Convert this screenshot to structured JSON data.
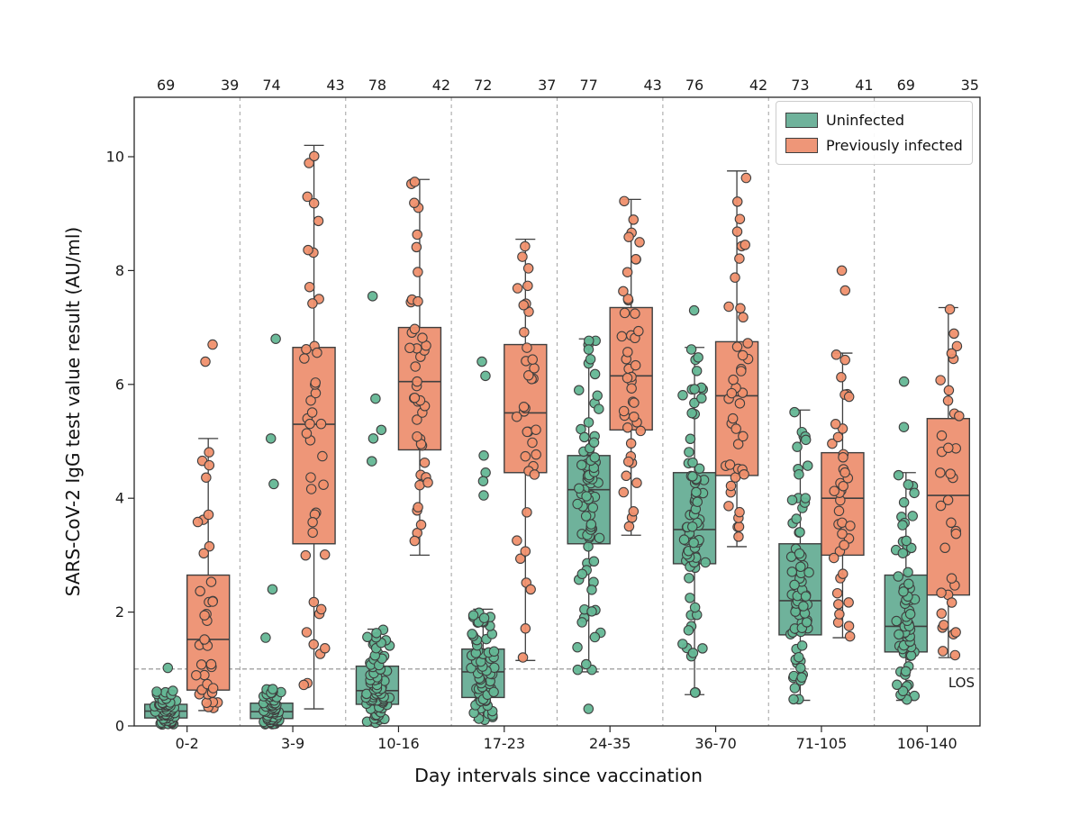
{
  "figure": {
    "ylabel": "SARS-CoV-2 IgG test value result (AU/ml)",
    "xlabel": "Day intervals since vaccination",
    "colors": {
      "frame": "#262626",
      "text": "#1a1a1a",
      "separator": "#a9a9a9",
      "reference_line": "#8c8c8c",
      "box_edge": "#3f3f3f"
    }
  },
  "chart_data": {
    "type": "box+jittered-strip",
    "title": "",
    "xlabel": "Day intervals since vaccination",
    "ylabel": "SARS-CoV-2 IgG test value result (AU/ml)",
    "categories": [
      "0-2",
      "3-9",
      "10-16",
      "17-23",
      "24-35",
      "36-70",
      "71-105",
      "106-140"
    ],
    "y_axis": {
      "ticks": [
        0,
        2,
        4,
        6,
        8,
        10
      ],
      "range": [
        0,
        11.04
      ],
      "grid": false
    },
    "reference_line": {
      "y": 1.0,
      "label": "LOS",
      "style": "dashed"
    },
    "top_axis_note": "per-group sample sizes printed above plot",
    "legend_position": "upper right",
    "series": [
      {
        "name": "Uninfected",
        "box_color": "#6fb29b",
        "point_color": "#64b795",
        "counts": [
          69,
          74,
          78,
          72,
          77,
          76,
          73,
          69
        ],
        "groups": [
          {
            "category": "0-2",
            "n": 69,
            "whisker_low": 0.02,
            "q1": 0.14,
            "median": 0.26,
            "q3": 0.38,
            "whisker_high": 0.62,
            "outliers": [
              1.02
            ]
          },
          {
            "category": "3-9",
            "n": 74,
            "whisker_low": 0.02,
            "q1": 0.13,
            "median": 0.25,
            "q3": 0.4,
            "whisker_high": 0.65,
            "outliers": [
              6.8,
              5.05,
              4.25,
              2.4,
              1.55
            ]
          },
          {
            "category": "10-16",
            "n": 78,
            "whisker_low": 0.05,
            "q1": 0.38,
            "median": 0.62,
            "q3": 1.05,
            "whisker_high": 1.7,
            "outliers": [
              7.55,
              5.75,
              5.2,
              5.05,
              4.65
            ]
          },
          {
            "category": "17-23",
            "n": 72,
            "whisker_low": 0.1,
            "q1": 0.5,
            "median": 0.95,
            "q3": 1.35,
            "whisker_high": 2.05,
            "outliers": [
              6.4,
              6.15,
              4.75,
              4.45,
              4.3,
              4.05
            ]
          },
          {
            "category": "24-35",
            "n": 77,
            "whisker_low": 0.95,
            "q1": 3.2,
            "median": 4.15,
            "q3": 4.75,
            "whisker_high": 6.8,
            "outliers": [
              0.3
            ]
          },
          {
            "category": "36-70",
            "n": 76,
            "whisker_low": 0.55,
            "q1": 2.85,
            "median": 3.45,
            "q3": 4.45,
            "whisker_high": 6.65,
            "outliers": [
              7.3
            ]
          },
          {
            "category": "71-105",
            "n": 73,
            "whisker_low": 0.45,
            "q1": 1.6,
            "median": 2.2,
            "q3": 3.2,
            "whisker_high": 5.55,
            "outliers": []
          },
          {
            "category": "106-140",
            "n": 69,
            "whisker_low": 0.45,
            "q1": 1.3,
            "median": 1.75,
            "q3": 2.65,
            "whisker_high": 4.45,
            "outliers": [
              6.05,
              5.25
            ]
          }
        ]
      },
      {
        "name": "Previously infected",
        "box_color": "#ee9678",
        "point_color": "#f0906d",
        "counts": [
          39,
          43,
          42,
          37,
          43,
          42,
          41,
          35
        ],
        "groups": [
          {
            "category": "0-2",
            "n": 39,
            "whisker_low": 0.27,
            "q1": 0.63,
            "median": 1.52,
            "q3": 2.65,
            "whisker_high": 5.05,
            "outliers": [
              6.7,
              6.4
            ]
          },
          {
            "category": "3-9",
            "n": 43,
            "whisker_low": 0.3,
            "q1": 3.2,
            "median": 5.3,
            "q3": 6.65,
            "whisker_high": 10.2,
            "outliers": []
          },
          {
            "category": "10-16",
            "n": 42,
            "whisker_low": 3.0,
            "q1": 4.85,
            "median": 6.05,
            "q3": 7.0,
            "whisker_high": 9.6,
            "outliers": []
          },
          {
            "category": "17-23",
            "n": 37,
            "whisker_low": 1.15,
            "q1": 4.45,
            "median": 5.5,
            "q3": 6.7,
            "whisker_high": 8.55,
            "outliers": []
          },
          {
            "category": "24-35",
            "n": 43,
            "whisker_low": 3.35,
            "q1": 5.2,
            "median": 6.15,
            "q3": 7.35,
            "whisker_high": 9.25,
            "outliers": []
          },
          {
            "category": "36-70",
            "n": 42,
            "whisker_low": 3.15,
            "q1": 4.4,
            "median": 5.8,
            "q3": 6.75,
            "whisker_high": 9.75,
            "outliers": []
          },
          {
            "category": "71-105",
            "n": 41,
            "whisker_low": 1.55,
            "q1": 3.0,
            "median": 4.0,
            "q3": 4.8,
            "whisker_high": 6.55,
            "outliers": [
              8.0,
              7.65
            ]
          },
          {
            "category": "106-140",
            "n": 35,
            "whisker_low": 1.2,
            "q1": 2.3,
            "median": 4.05,
            "q3": 5.4,
            "whisker_high": 7.35,
            "outliers": []
          }
        ]
      }
    ]
  }
}
